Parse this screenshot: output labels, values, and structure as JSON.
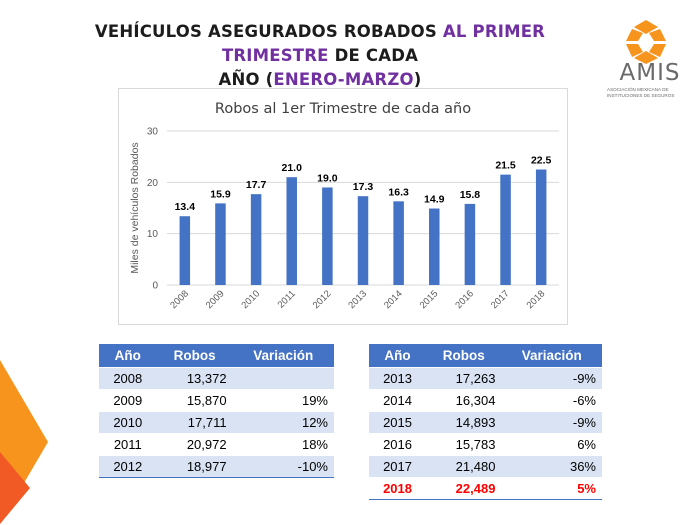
{
  "title": {
    "line1_a": "VEHÍCULOS ASEGURADOS ROBADOS ",
    "line1_b": "AL PRIMER TRIMESTRE",
    "line1_c": " DE CADA",
    "line2_a": "AÑO (",
    "line2_b": "ENERO-MARZO",
    "line2_c": ")"
  },
  "logo": {
    "name": "AMIS",
    "subtitle_line1": "Asociación Mexicana de",
    "subtitle_line2": "Instituciones de Seguros",
    "color": "#f7941d"
  },
  "colors": {
    "bar": "#4472c4",
    "accent_orange": "#f7941d",
    "highlight_purple": "#7030a0",
    "highlight_red": "#ff0000"
  },
  "chart_data": {
    "type": "bar",
    "title": "Robos al 1er Trimestre de cada año",
    "xlabel": "",
    "ylabel": "Miles de vehículos Robados",
    "categories": [
      "2008",
      "2009",
      "2010",
      "2011",
      "2012",
      "2013",
      "2014",
      "2015",
      "2016",
      "2017",
      "2018"
    ],
    "values": [
      13.4,
      15.9,
      17.7,
      21.0,
      19.0,
      17.3,
      16.3,
      14.9,
      15.8,
      21.5,
      22.5
    ],
    "value_labels": [
      "13.4",
      "15.9",
      "17.7",
      "21.0",
      "19.0",
      "17.3",
      "16.3",
      "14.9",
      "15.8",
      "21.5",
      "22.5"
    ],
    "ylim": [
      0,
      30
    ],
    "yticks": [
      "0",
      "10",
      "20",
      "30"
    ],
    "grid": true,
    "legend": "none"
  },
  "table_left": {
    "headers": [
      "Año",
      "Robos",
      "Variación"
    ],
    "rows": [
      [
        "2008",
        "13,372",
        ""
      ],
      [
        "2009",
        "15,870",
        "19%"
      ],
      [
        "2010",
        "17,711",
        "12%"
      ],
      [
        "2011",
        "20,972",
        "18%"
      ],
      [
        "2012",
        "18,977",
        "-10%"
      ]
    ]
  },
  "table_right": {
    "headers": [
      "Año",
      "Robos",
      "Variación"
    ],
    "rows": [
      [
        "2013",
        "17,263",
        "-9%"
      ],
      [
        "2014",
        "16,304",
        "-6%"
      ],
      [
        "2015",
        "14,893",
        "-9%"
      ],
      [
        "2016",
        "15,783",
        "6%"
      ],
      [
        "2017",
        "21,480",
        "36%"
      ],
      [
        "2018",
        "22,489",
        "5%"
      ]
    ]
  }
}
